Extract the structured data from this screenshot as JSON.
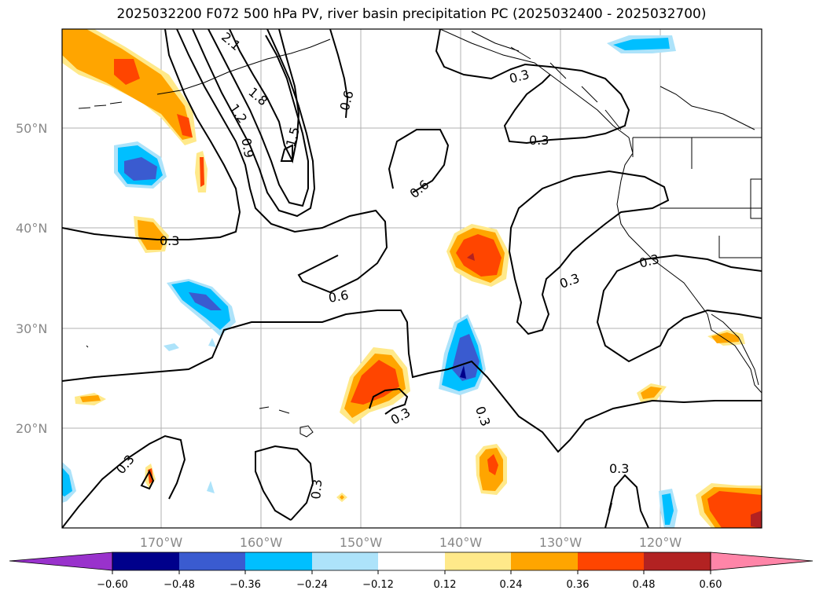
{
  "title": "2025032200 F072 500 hPa PV, river basin precipitation PC (2025032400 - 2025032700)",
  "lat_labels": [
    "50°N",
    "40°N",
    "30°N",
    "20°N"
  ],
  "lon_labels": [
    "170°W",
    "160°W",
    "150°W",
    "140°W",
    "130°W",
    "120°W"
  ],
  "contour_labels": [
    "2.1",
    "1.8",
    "1.2",
    "0.9",
    "1.5",
    "0.6",
    "0.3",
    "0.6",
    "0.3",
    "0.6",
    "0.3",
    "0.3",
    "0.3",
    "0.3",
    "0.3",
    "0.3",
    "0.3",
    "0.3"
  ],
  "colorbar": {
    "ticks": [
      "−0.60",
      "−0.48",
      "−0.36",
      "−0.24",
      "−0.12",
      "0.12",
      "0.24",
      "0.36",
      "0.48",
      "0.60"
    ],
    "colors": [
      "#9932CC",
      "#00008B",
      "#3A5BD0",
      "#00BFFF",
      "#ADE3FA",
      "#FFFFFF",
      "#FFE98A",
      "#FFA500",
      "#FF4500",
      "#B22222",
      "#FF85A8"
    ]
  }
}
